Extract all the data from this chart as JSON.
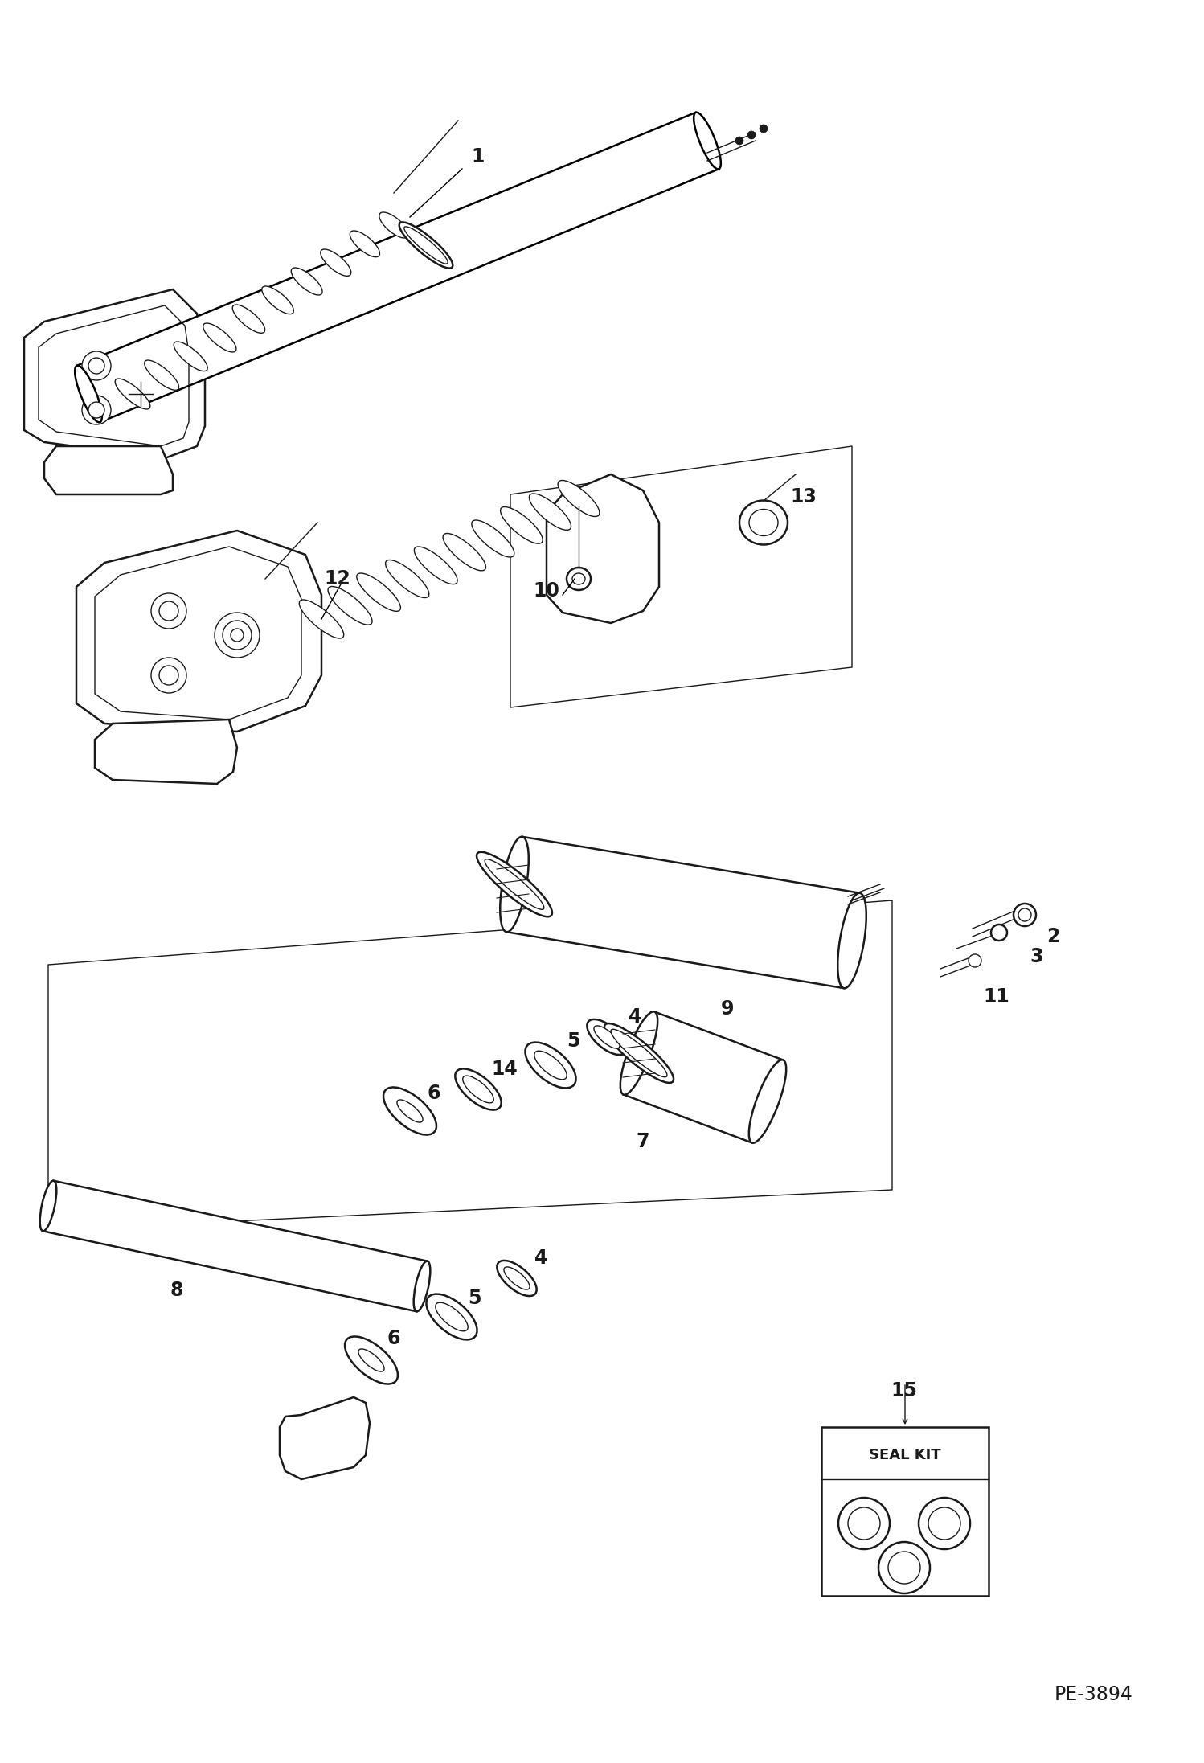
{
  "bg_color": "#ffffff",
  "line_color": "#1a1a1a",
  "pe_number": "PE-3894",
  "fig_width": 14.98,
  "fig_height": 21.93,
  "dpi": 100
}
